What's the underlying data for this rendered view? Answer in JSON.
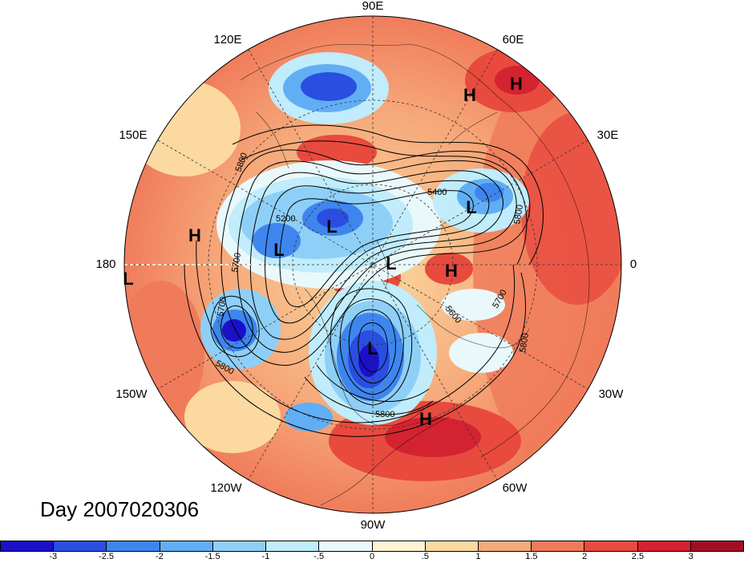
{
  "title": "Day 2007020306",
  "map": {
    "projection": "north-polar-stereographic",
    "longitude_labels": {
      "top": "90E",
      "upper_left": "120E",
      "upper_right": "60E",
      "left_upper": "150E",
      "right_upper": "30E",
      "left": "180",
      "right": "0",
      "left_lower": "150W",
      "right_lower": "30W",
      "lower_left": "120W",
      "lower_right": "60W",
      "bottom": "90W"
    },
    "pressure_centers": [
      {
        "label": "H",
        "near": "Arabia"
      },
      {
        "label": "H",
        "near": "Central Asia"
      },
      {
        "label": "H",
        "near": "North Pacific"
      },
      {
        "label": "L",
        "near": "Siberia-west"
      },
      {
        "label": "L",
        "near": "Siberia-east"
      },
      {
        "label": "L",
        "near": "Arctic"
      },
      {
        "label": "H",
        "near": "Greenland"
      },
      {
        "label": "L",
        "near": "Eastern Europe"
      },
      {
        "label": "L",
        "near": "Eastern North America"
      },
      {
        "label": "H",
        "near": "Caribbean"
      },
      {
        "label": "L",
        "near": "Dateline edge"
      }
    ],
    "contour_labels": [
      "5800",
      "5400",
      "5200",
      "5700",
      "5700",
      "5800",
      "5600",
      "5800",
      "5700",
      "5800",
      "5800"
    ]
  },
  "colorbar": {
    "colors": [
      "#1a10c8",
      "#2a4ee0",
      "#3e86ee",
      "#62aef4",
      "#8ecff8",
      "#c0ecfb",
      "#e9f8fb",
      "#fdf3d2",
      "#fbd9a0",
      "#f6a97a",
      "#f07b5a",
      "#e84a3e",
      "#d42330",
      "#a40e22"
    ],
    "tick_labels": [
      "-3",
      "-2.5",
      "-2",
      "-1.5",
      "-1",
      "-.5",
      "0",
      ".5",
      "1",
      "1.5",
      "2",
      "2.5",
      "3"
    ]
  }
}
